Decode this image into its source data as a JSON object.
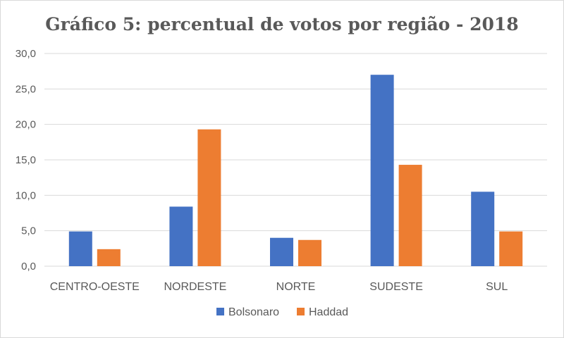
{
  "chart_data": {
    "type": "bar",
    "title": "Gráfico 5: percentual de votos por região - 2018",
    "categories": [
      "CENTRO-OESTE",
      "NORDESTE",
      "NORTE",
      "SUDESTE",
      "SUL"
    ],
    "series": [
      {
        "name": "Bolsonaro",
        "color": "#4472c4",
        "values": [
          4.9,
          8.4,
          4.0,
          27.0,
          10.5
        ]
      },
      {
        "name": "Haddad",
        "color": "#ed7d31",
        "values": [
          2.4,
          19.3,
          3.7,
          14.3,
          4.9
        ]
      }
    ],
    "ylim": [
      0,
      30
    ],
    "yticks": [
      "0,0",
      "5,0",
      "10,0",
      "15,0",
      "20,0",
      "25,0",
      "30,0"
    ],
    "grid": true,
    "legend_position": "bottom"
  }
}
